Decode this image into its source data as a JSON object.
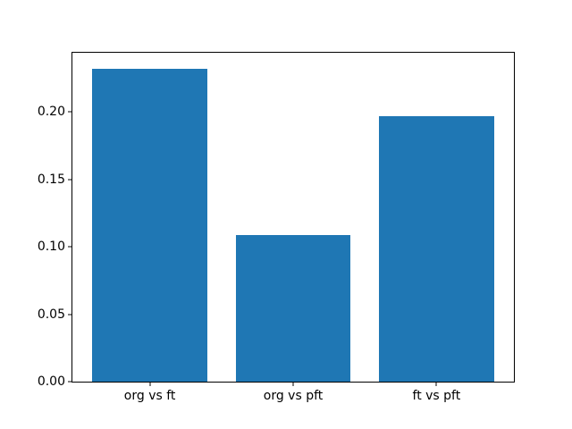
{
  "chart_data": {
    "type": "bar",
    "title": "",
    "xlabel": "",
    "ylabel": "",
    "categories": [
      "org vs ft",
      "org vs pft",
      "ft vs pft"
    ],
    "values": [
      0.232,
      0.109,
      0.197
    ],
    "ylim": [
      0,
      0.244
    ],
    "xlim": [
      -0.54,
      2.54
    ],
    "y_ticks": [
      0.0,
      0.05,
      0.1,
      0.15,
      0.2
    ],
    "y_tick_labels": [
      "0.00",
      "0.05",
      "0.10",
      "0.15",
      "0.20"
    ],
    "bar_width": 0.8,
    "bar_color": "#1f77b4",
    "background": "#ffffff",
    "spine_color": "#000000",
    "text_color": "#000000",
    "grid": false,
    "legend": "none"
  }
}
